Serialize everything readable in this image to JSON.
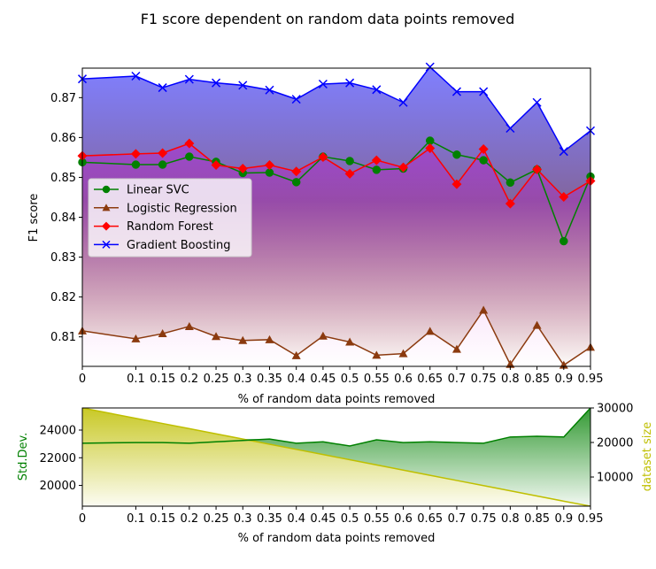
{
  "title": "F1 score dependent on random data points removed",
  "chart_data": [
    {
      "type": "line",
      "xlabel": "% of random data points removed",
      "ylabel": "F1 score",
      "x": [
        0,
        0.1,
        0.15,
        0.2,
        0.25,
        0.3,
        0.35,
        0.4,
        0.45,
        0.5,
        0.55,
        0.6,
        0.65,
        0.7,
        0.75,
        0.8,
        0.85,
        0.9,
        0.95
      ],
      "x_tick_labels": [
        "0",
        "0.1",
        "0.15",
        "0.2",
        "0.25",
        "0.3",
        "0.35",
        "0.4",
        "0.45",
        "0.5",
        "0.55",
        "0.6",
        "0.65",
        "0.7",
        "0.75",
        "0.8",
        "0.85",
        "0.9",
        "0.95"
      ],
      "ylim": [
        0.8026,
        0.8774
      ],
      "y_ticks": [
        0.81,
        0.82,
        0.83,
        0.84,
        0.85,
        0.86,
        0.87
      ],
      "y_tick_labels": [
        "0.81",
        "0.82",
        "0.83",
        "0.84",
        "0.85",
        "0.86",
        "0.87"
      ],
      "legend_position": "center-left",
      "series": [
        {
          "name": "Linear SVC",
          "color": "#008000",
          "marker": "circle",
          "values": [
            0.8538,
            0.8532,
            0.8532,
            0.8552,
            0.8539,
            0.8511,
            0.8512,
            0.8488,
            0.8552,
            0.8541,
            0.8519,
            0.8522,
            0.8592,
            0.8557,
            0.8543,
            0.8487,
            0.852,
            0.834,
            0.8502
          ]
        },
        {
          "name": "Logistic Regression",
          "color": "#8b3a0f",
          "marker": "triangle",
          "values": [
            0.8115,
            0.8095,
            0.8108,
            0.8126,
            0.8101,
            0.8091,
            0.8093,
            0.8053,
            0.8102,
            0.8087,
            0.8054,
            0.8058,
            0.8114,
            0.8069,
            0.8167,
            0.8031,
            0.8129,
            0.8029,
            0.8074
          ]
        },
        {
          "name": "Random Forest",
          "color": "#ff0000",
          "marker": "diamond",
          "values": [
            0.8554,
            0.8559,
            0.8561,
            0.8585,
            0.8531,
            0.8522,
            0.8531,
            0.8515,
            0.8551,
            0.8509,
            0.8543,
            0.8525,
            0.8573,
            0.8483,
            0.8571,
            0.8434,
            0.852,
            0.8451,
            0.8491
          ]
        },
        {
          "name": "Gradient Boosting",
          "color": "#0000ff",
          "marker": "x",
          "values": [
            0.8747,
            0.8754,
            0.8725,
            0.8746,
            0.8737,
            0.8731,
            0.8719,
            0.8696,
            0.8734,
            0.8737,
            0.872,
            0.8688,
            0.8777,
            0.8715,
            0.8715,
            0.8623,
            0.8688,
            0.8565,
            0.8617
          ]
        }
      ]
    },
    {
      "type": "line",
      "xlabel": "% of random data points removed",
      "ylabel": "Std.Dev.",
      "y2label": "dataset size",
      "x": [
        0,
        0.1,
        0.15,
        0.2,
        0.25,
        0.3,
        0.35,
        0.4,
        0.45,
        0.5,
        0.55,
        0.6,
        0.65,
        0.7,
        0.75,
        0.8,
        0.85,
        0.9,
        0.95
      ],
      "ylim": [
        18500,
        25600
      ],
      "y_ticks": [
        20000,
        22000,
        24000
      ],
      "y_tick_labels": [
        "20000",
        "22000",
        "24000"
      ],
      "y2lim": [
        1550,
        30000
      ],
      "y2_ticks": [
        10000,
        20000,
        30000
      ],
      "y2_tick_labels": [
        "10000",
        "20000",
        "30000"
      ],
      "series": [
        {
          "name": "Std.Dev.",
          "axis": "left",
          "color": "#008000",
          "values": [
            23050,
            23100,
            23100,
            23050,
            23150,
            23250,
            23350,
            23050,
            23150,
            22850,
            23300,
            23100,
            23150,
            23100,
            23050,
            23500,
            23550,
            23500,
            25600
          ]
        },
        {
          "name": "dataset size",
          "axis": "right",
          "color": "#bfbf00",
          "values": [
            30000,
            27000,
            25500,
            24000,
            22500,
            21000,
            19500,
            18000,
            16500,
            15000,
            13500,
            12000,
            10500,
            9000,
            7500,
            6000,
            4500,
            3000,
            1550
          ]
        }
      ]
    }
  ]
}
